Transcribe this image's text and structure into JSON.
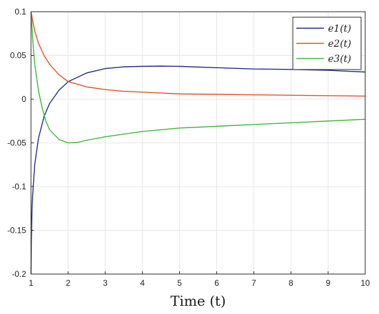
{
  "chart_data": {
    "type": "line",
    "title": "",
    "xlabel": "Time (t)",
    "ylabel": "",
    "xlim": [
      1,
      10
    ],
    "ylim": [
      -0.2,
      0.1
    ],
    "grid": true,
    "legend_position": "top-right",
    "x_ticks": [
      "1",
      "2",
      "3",
      "4",
      "5",
      "6",
      "7",
      "8",
      "9",
      "10"
    ],
    "y_ticks": [
      "0.1",
      "0.05",
      "0",
      "-0.05",
      "-0.1",
      "-0.15",
      "-0.2"
    ],
    "series": [
      {
        "name": "e1(t)",
        "color": "#1f2f80",
        "x": [
          1.0,
          1.01,
          1.03,
          1.06,
          1.1,
          1.2,
          1.35,
          1.5,
          1.75,
          2.0,
          2.5,
          3.0,
          3.5,
          4.0,
          4.5,
          5.0,
          6.0,
          7.0,
          8.0,
          9.0,
          10.0
        ],
        "y": [
          -0.2,
          -0.16,
          -0.12,
          -0.1,
          -0.075,
          -0.045,
          -0.02,
          -0.005,
          0.01,
          0.02,
          0.03,
          0.035,
          0.037,
          0.0375,
          0.0378,
          0.0375,
          0.036,
          0.0345,
          0.034,
          0.033,
          0.031
        ]
      },
      {
        "name": "e2(t)",
        "color": "#e0502a",
        "x": [
          1.0,
          1.1,
          1.2,
          1.35,
          1.5,
          1.75,
          2.0,
          2.5,
          3.0,
          3.5,
          4.0,
          4.5,
          5.0,
          6.0,
          7.0,
          8.0,
          9.0,
          10.0
        ],
        "y": [
          0.1,
          0.078,
          0.064,
          0.05,
          0.04,
          0.028,
          0.02,
          0.014,
          0.011,
          0.009,
          0.008,
          0.007,
          0.006,
          0.0055,
          0.005,
          0.0045,
          0.004,
          0.0035
        ]
      },
      {
        "name": "e3(t)",
        "color": "#3cb83c",
        "x": [
          1.0,
          1.03,
          1.06,
          1.1,
          1.2,
          1.3,
          1.4,
          1.5,
          1.75,
          2.0,
          2.25,
          2.5,
          3.0,
          3.5,
          4.0,
          5.0,
          6.0,
          7.0,
          8.0,
          9.0,
          10.0
        ],
        "y": [
          0.1,
          0.08,
          0.06,
          0.04,
          0.01,
          -0.01,
          -0.025,
          -0.035,
          -0.046,
          -0.05,
          -0.0495,
          -0.047,
          -0.043,
          -0.04,
          -0.037,
          -0.033,
          -0.031,
          -0.029,
          -0.027,
          -0.025,
          -0.023
        ]
      }
    ]
  }
}
